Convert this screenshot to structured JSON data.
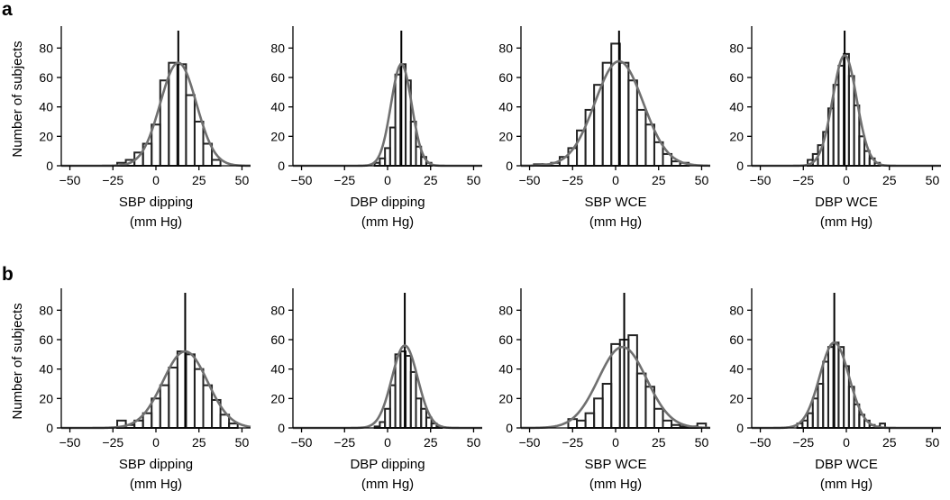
{
  "panel_labels": [
    "a",
    "b"
  ],
  "colors": {
    "bars": "#222222",
    "fit_curve": "#707070",
    "axis": "#000000"
  },
  "chart_data": [
    {
      "type": "bar",
      "row": "a",
      "xlabel": "SBP dipping",
      "xunit": "(mm Hg)",
      "ylabel": "Number of subjects",
      "xlim": [
        -55,
        55
      ],
      "ylim": [
        0,
        90
      ],
      "xticks": [
        -50,
        -25,
        0,
        25,
        50
      ],
      "yticks": [
        0,
        20,
        40,
        60,
        80
      ],
      "bin_width": 5,
      "bin_centers": [
        -20,
        -15,
        -10,
        -5,
        0,
        5,
        10,
        15,
        20,
        25,
        30,
        35
      ],
      "values": [
        2,
        4,
        9,
        15,
        28,
        58,
        70,
        69,
        48,
        30,
        15,
        4
      ],
      "vertical_line_x": 13,
      "fit": {
        "mean": 13,
        "sd": 10.5,
        "peak": 70
      }
    },
    {
      "type": "bar",
      "row": "a",
      "xlabel": "DBP dipping",
      "xunit": "(mm Hg)",
      "ylabel": "",
      "xlim": [
        -55,
        55
      ],
      "ylim": [
        0,
        90
      ],
      "xticks": [
        -50,
        -25,
        0,
        25,
        50
      ],
      "yticks": [
        0,
        20,
        40,
        60,
        80
      ],
      "bin_width": 3,
      "bin_centers": [
        -6,
        -3,
        0,
        3,
        6,
        9,
        12,
        15,
        18,
        21,
        24
      ],
      "values": [
        2,
        5,
        12,
        26,
        62,
        69,
        58,
        30,
        13,
        6,
        2
      ],
      "vertical_line_x": 8,
      "fit": {
        "mean": 8,
        "sd": 6,
        "peak": 69
      }
    },
    {
      "type": "bar",
      "row": "a",
      "xlabel": "SBP WCE",
      "xunit": "(mm Hg)",
      "ylabel": "",
      "xlim": [
        -55,
        55
      ],
      "ylim": [
        0,
        90
      ],
      "xticks": [
        -50,
        -25,
        0,
        25,
        50
      ],
      "yticks": [
        0,
        20,
        40,
        60,
        80
      ],
      "bin_width": 5,
      "bin_centers": [
        -45,
        -40,
        -35,
        -30,
        -25,
        -20,
        -15,
        -10,
        -5,
        0,
        5,
        10,
        15,
        20,
        25,
        30,
        35,
        40
      ],
      "values": [
        1,
        1,
        2,
        6,
        12,
        24,
        38,
        55,
        70,
        83,
        70,
        58,
        38,
        28,
        16,
        8,
        3,
        2
      ],
      "vertical_line_x": 2,
      "fit": {
        "mean": 2,
        "sd": 14,
        "peak": 71
      }
    },
    {
      "type": "bar",
      "row": "a",
      "xlabel": "DBP WCE",
      "xunit": "(mm Hg)",
      "ylabel": "",
      "xlim": [
        -55,
        55
      ],
      "ylim": [
        0,
        90
      ],
      "xticks": [
        -50,
        -25,
        0,
        25,
        50
      ],
      "yticks": [
        0,
        20,
        40,
        60,
        80
      ],
      "bin_width": 3,
      "bin_centers": [
        -21,
        -18,
        -15,
        -12,
        -9,
        -6,
        -3,
        0,
        3,
        6,
        9,
        12,
        15,
        18
      ],
      "values": [
        4,
        8,
        14,
        23,
        39,
        55,
        68,
        76,
        61,
        41,
        20,
        10,
        5,
        2
      ],
      "vertical_line_x": -1,
      "fit": {
        "mean": -1,
        "sd": 7,
        "peak": 75
      }
    },
    {
      "type": "bar",
      "row": "b",
      "xlabel": "SBP dipping",
      "xunit": "(mm Hg)",
      "ylabel": "Number of subjects",
      "xlim": [
        -55,
        55
      ],
      "ylim": [
        0,
        90
      ],
      "xticks": [
        -50,
        -25,
        0,
        25,
        50
      ],
      "yticks": [
        0,
        20,
        40,
        60,
        80
      ],
      "bin_width": 5,
      "bin_centers": [
        -20,
        -15,
        -10,
        -5,
        0,
        5,
        10,
        15,
        20,
        25,
        30,
        35,
        40,
        45
      ],
      "values": [
        5,
        2,
        5,
        10,
        20,
        29,
        41,
        52,
        50,
        40,
        29,
        19,
        9,
        3
      ],
      "vertical_line_x": 17,
      "fit": {
        "mean": 17,
        "sd": 13,
        "peak": 52
      }
    },
    {
      "type": "bar",
      "row": "b",
      "xlabel": "DBP dipping",
      "xunit": "(mm Hg)",
      "ylabel": "",
      "xlim": [
        -55,
        55
      ],
      "ylim": [
        0,
        90
      ],
      "xticks": [
        -50,
        -25,
        0,
        25,
        50
      ],
      "yticks": [
        0,
        20,
        40,
        60,
        80
      ],
      "bin_width": 3,
      "bin_centers": [
        -6,
        -3,
        0,
        3,
        6,
        9,
        12,
        15,
        18,
        21,
        24,
        27,
        30
      ],
      "values": [
        1,
        4,
        13,
        29,
        50,
        52,
        49,
        38,
        20,
        13,
        7,
        3,
        1
      ],
      "vertical_line_x": 10,
      "fit": {
        "mean": 10,
        "sd": 7.5,
        "peak": 56
      }
    },
    {
      "type": "bar",
      "row": "b",
      "xlabel": "SBP WCE",
      "xunit": "(mm Hg)",
      "ylabel": "",
      "xlim": [
        -55,
        55
      ],
      "ylim": [
        0,
        90
      ],
      "xticks": [
        -50,
        -25,
        0,
        25,
        50
      ],
      "yticks": [
        0,
        20,
        40,
        60,
        80
      ],
      "bin_width": 5,
      "bin_centers": [
        -25,
        -20,
        -15,
        -10,
        -5,
        0,
        5,
        10,
        15,
        20,
        25,
        30,
        35,
        40,
        45,
        50
      ],
      "values": [
        6,
        5,
        10,
        20,
        30,
        57,
        60,
        63,
        37,
        28,
        13,
        5,
        2,
        1,
        1,
        3
      ],
      "vertical_line_x": 5,
      "fit": {
        "mean": 4,
        "sd": 14,
        "peak": 55
      }
    },
    {
      "type": "bar",
      "row": "b",
      "xlabel": "DBP WCE",
      "xunit": "(mm Hg)",
      "ylabel": "",
      "xlim": [
        -55,
        55
      ],
      "ylim": [
        0,
        90
      ],
      "xticks": [
        -50,
        -25,
        0,
        25,
        50
      ],
      "yticks": [
        0,
        20,
        40,
        60,
        80
      ],
      "bin_width": 3,
      "bin_centers": [
        -27,
        -24,
        -21,
        -18,
        -15,
        -12,
        -9,
        -6,
        -3,
        0,
        3,
        6,
        9,
        12,
        15,
        18,
        21
      ],
      "values": [
        3,
        5,
        10,
        20,
        30,
        45,
        55,
        58,
        55,
        42,
        28,
        16,
        9,
        5,
        2,
        1,
        3
      ],
      "vertical_line_x": -7,
      "fit": {
        "mean": -7,
        "sd": 8.5,
        "peak": 58
      }
    }
  ]
}
